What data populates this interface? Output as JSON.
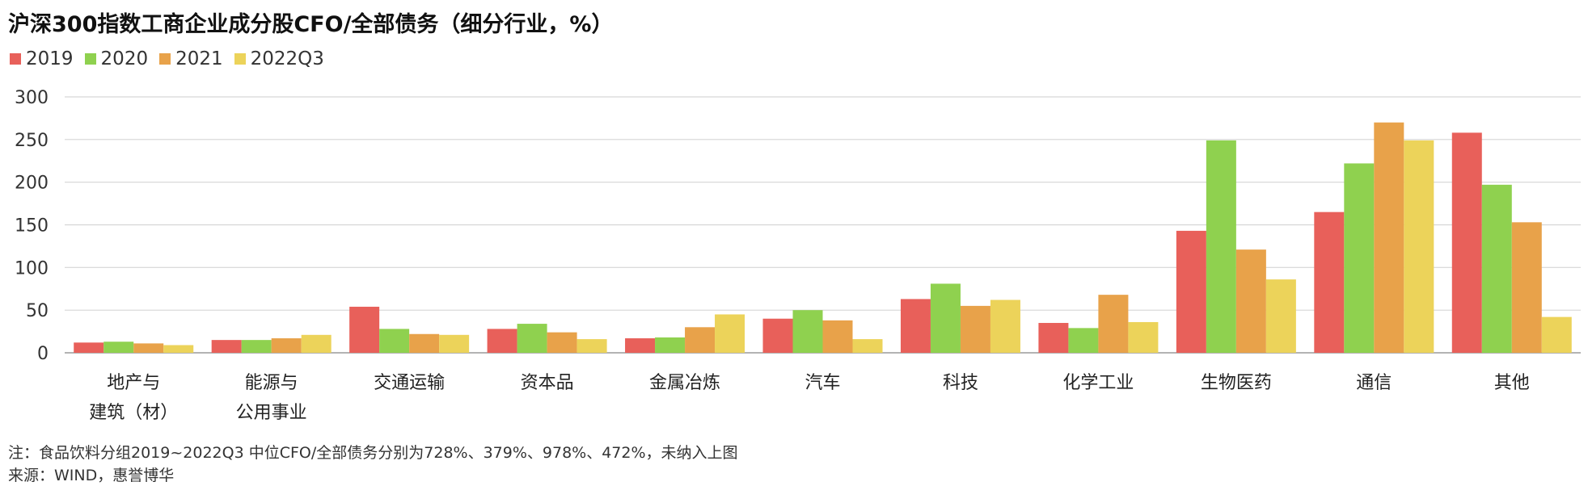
{
  "title": "沪深300指数工商企业成分股CFO/全部债务（细分行业，%）",
  "note": "注：食品饮料分组2019~2022Q3 中位CFO/全部债务分别为728%、379%、978%、472%，未纳入上图",
  "source": "来源：WIND，惠誉博华",
  "colors": [
    "#e8605a",
    "#8fd14f",
    "#e8a24a",
    "#ecd35a"
  ],
  "chart_data": {
    "type": "bar",
    "title": "沪深300指数工商企业成分股CFO/全部债务（细分行业，%）",
    "xlabel": "",
    "ylabel": "",
    "ylim": [
      0,
      300
    ],
    "yticks": [
      0,
      50,
      100,
      150,
      200,
      250,
      300
    ],
    "grid": true,
    "legend": "top-left",
    "categories": [
      [
        "地产与",
        "建筑（材）"
      ],
      [
        "能源与",
        "公用事业"
      ],
      [
        "交通运输"
      ],
      [
        "资本品"
      ],
      [
        "金属冶炼"
      ],
      [
        "汽车"
      ],
      [
        "科技"
      ],
      [
        "化学工业"
      ],
      [
        "生物医药"
      ],
      [
        "通信"
      ],
      [
        "其他"
      ]
    ],
    "series": [
      {
        "name": "2019",
        "values": [
          12,
          15,
          54,
          28,
          17,
          40,
          63,
          35,
          143,
          165,
          258
        ]
      },
      {
        "name": "2020",
        "values": [
          13,
          15,
          28,
          34,
          18,
          50,
          81,
          29,
          249,
          222,
          197
        ]
      },
      {
        "name": "2021",
        "values": [
          11,
          17,
          22,
          24,
          30,
          38,
          55,
          68,
          121,
          270,
          153
        ]
      },
      {
        "name": "2022Q3",
        "values": [
          9,
          21,
          21,
          16,
          45,
          16,
          62,
          36,
          86,
          249,
          42
        ]
      }
    ]
  }
}
